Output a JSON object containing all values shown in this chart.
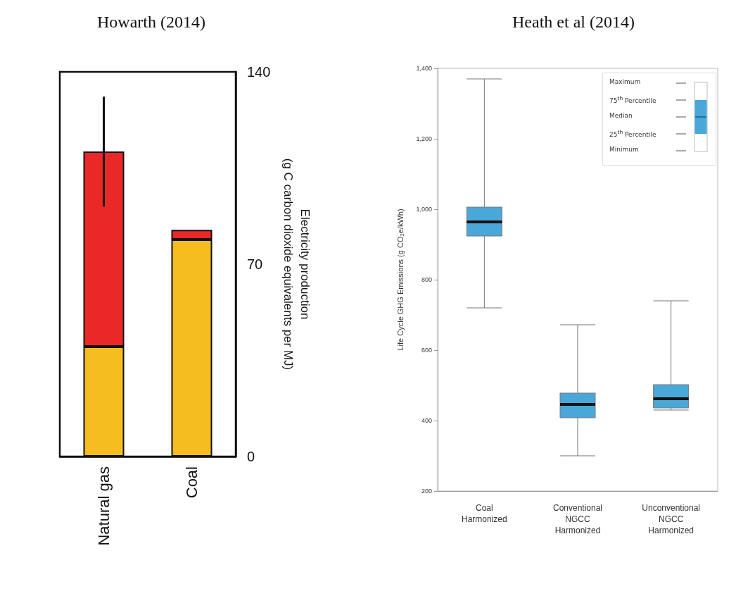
{
  "chart_data": [
    {
      "type": "bar",
      "title": "Howarth (2014)",
      "ylabel": "Electricity production\n(g C carbon dioxide equivalents per MJ)",
      "categories": [
        "Natural gas",
        "Coal"
      ],
      "stacked": true,
      "ylim": [
        0,
        140
      ],
      "yticks": [
        0,
        70,
        140
      ],
      "grid": false,
      "series": [
        {
          "color": "#f5bd1f",
          "values": [
            40,
            79
          ]
        },
        {
          "color": "#ea2828",
          "values": [
            71,
            3.5
          ],
          "errors": [
            [
              91,
              131
            ],
            null
          ]
        }
      ]
    },
    {
      "type": "box",
      "title": "Heath et al (2014)",
      "ylabel": "Life Cycle GHG Emissions (g CO₂e/kWh)",
      "categories": [
        "Coal\nHarmonized",
        "Conventional\nNGCC\nHarmonized",
        "Unconventional\nNGCC\nHarmonized"
      ],
      "color": "#4aa8d8",
      "ylim": [
        200,
        1400
      ],
      "yticks": [
        {
          "value": 200,
          "label": "200"
        },
        {
          "value": 400,
          "label": "400"
        },
        {
          "value": 600,
          "label": "600"
        },
        {
          "value": 800,
          "label": "800"
        },
        {
          "value": 1000,
          "label": "1,000"
        },
        {
          "value": 1200,
          "label": "1,200"
        },
        {
          "value": 1400,
          "label": "1,400"
        }
      ],
      "grid": false,
      "boxes": [
        {
          "low": 720,
          "q1": 924,
          "median": 964,
          "q3": 1006,
          "high": 1370
        },
        {
          "low": 300,
          "q1": 408,
          "median": 446,
          "q3": 478,
          "high": 672
        },
        {
          "low": 430,
          "q1": 436,
          "median": 462,
          "q3": 502,
          "high": 740
        }
      ],
      "annotations": [
        "Maximum",
        "75$^{th}$ Percentile",
        "Median",
        "25$^{th}$ Percentile",
        "Minimum"
      ]
    }
  ]
}
